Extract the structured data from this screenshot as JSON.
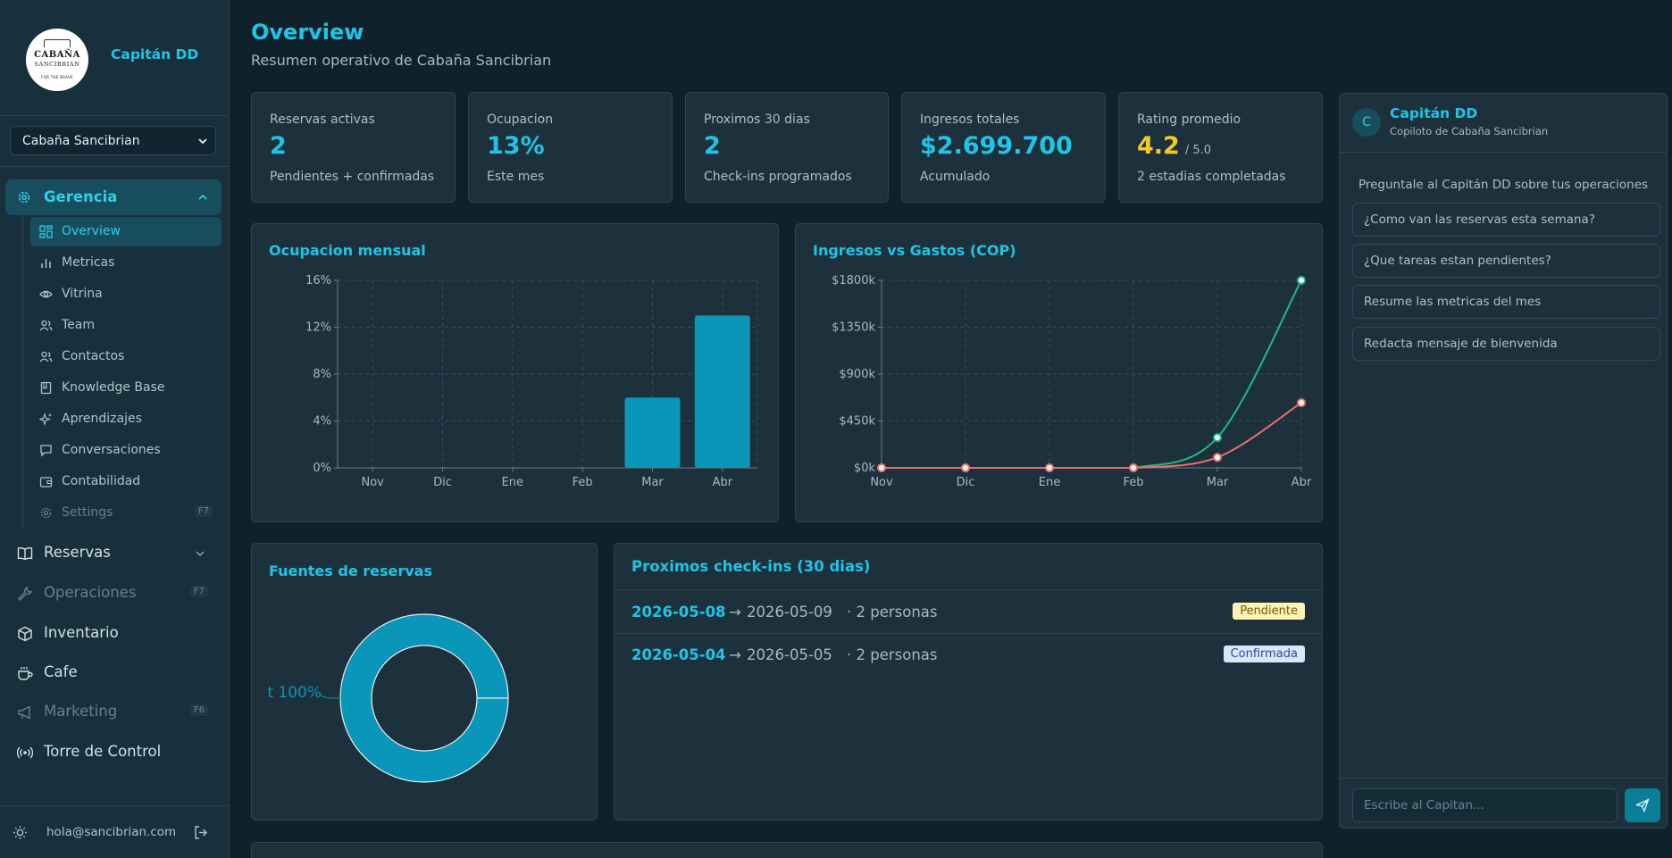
{
  "brand": {
    "logo_line1": "CABAÑA",
    "logo_line2": "SANCIBRIAN",
    "logo_line3": "FOR THE BRAVE",
    "name": "Capitán DD"
  },
  "property_select": {
    "value": "Cabaña Sancibrian"
  },
  "sidebar": {
    "group": {
      "label": "Gerencia",
      "icon": "gear-icon"
    },
    "sub_items": [
      {
        "label": "Overview",
        "icon": "dashboard-icon",
        "active": true
      },
      {
        "label": "Metricas",
        "icon": "bar-chart-icon"
      },
      {
        "label": "Vitrina",
        "icon": "eye-icon"
      },
      {
        "label": "Team",
        "icon": "users-icon"
      },
      {
        "label": "Contactos",
        "icon": "contacts-icon"
      },
      {
        "label": "Knowledge Base",
        "icon": "book-icon"
      },
      {
        "label": "Aprendizajes",
        "icon": "sparkles-icon"
      },
      {
        "label": "Conversaciones",
        "icon": "chat-icon"
      },
      {
        "label": "Contabilidad",
        "icon": "wallet-icon"
      },
      {
        "label": "Settings",
        "icon": "gear-icon",
        "key": "F7",
        "disabled": true
      }
    ],
    "items": [
      {
        "label": "Reservas",
        "icon": "book-open-icon"
      },
      {
        "label": "Operaciones",
        "icon": "wrench-icon",
        "key": "F7",
        "disabled": true
      },
      {
        "label": "Inventario",
        "icon": "package-icon"
      },
      {
        "label": "Cafe",
        "icon": "coffee-icon"
      },
      {
        "label": "Marketing",
        "icon": "megaphone-icon",
        "key": "F6",
        "disabled": true
      },
      {
        "label": "Torre de Control",
        "icon": "broadcast-icon"
      }
    ],
    "footer": {
      "email": "hola@sancibrian.com"
    }
  },
  "header": {
    "title": "Overview",
    "subtitle": "Resumen operativo de Cabaña Sancibrian"
  },
  "stats": [
    {
      "label": "Reservas activas",
      "value": "2",
      "note": "Pendientes + confirmadas"
    },
    {
      "label": "Ocupacion",
      "value": "13%",
      "note": "Este mes"
    },
    {
      "label": "Proximos 30 dias",
      "value": "2",
      "note": "Check-ins programados"
    },
    {
      "label": "Ingresos totales",
      "value": "$2.699.700",
      "note": "Acumulado"
    },
    {
      "label": "Rating promedio",
      "value": "4.2",
      "suffix": "/ 5.0",
      "note": "2 estadias completadas"
    }
  ],
  "colors": {
    "accent": "#1fc5e6",
    "bar": "#0a96b8",
    "ingresos": "#1fb986",
    "gastos": "#ef6f6c",
    "pending_bg": "#fdf3b3",
    "confirmed_bg": "#dbe6fb"
  },
  "chart_data": [
    {
      "type": "bar",
      "title": "Ocupacion mensual",
      "categories": [
        "Nov",
        "Dic",
        "Ene",
        "Feb",
        "Mar",
        "Abr"
      ],
      "values": [
        0,
        0,
        0,
        0,
        6,
        13
      ],
      "ylim": [
        0,
        16
      ],
      "yticks": [
        0,
        4,
        8,
        12,
        16
      ],
      "ytick_labels": [
        "0%",
        "4%",
        "8%",
        "12%",
        "16%"
      ],
      "grid": true
    },
    {
      "type": "line",
      "title": "Ingresos vs Gastos (COP)",
      "categories": [
        "Nov",
        "Dic",
        "Ene",
        "Feb",
        "Mar",
        "Abr"
      ],
      "series": [
        {
          "values": [
            0,
            0,
            0,
            0,
            290,
            1800
          ]
        },
        {
          "values": [
            0,
            0,
            0,
            0,
            100,
            625
          ]
        }
      ],
      "ylim": [
        0,
        1800
      ],
      "yticks": [
        0,
        450,
        900,
        1350,
        1800
      ],
      "ytick_labels": [
        "$0k",
        "$450k",
        "$900k",
        "$1350k",
        "$1800k"
      ],
      "grid": true
    },
    {
      "type": "pie",
      "title": "Fuentes de reservas",
      "slices": [
        {
          "label": "t 100%",
          "value": 100
        }
      ]
    }
  ],
  "checkins": {
    "title": "Proximos check-ins (30 dias)",
    "rows": [
      {
        "from": "2026-05-08",
        "arrow": "→",
        "to": "2026-05-09",
        "people": "· 2 personas",
        "status": "Pendiente"
      },
      {
        "from": "2026-05-04",
        "arrow": "→",
        "to": "2026-05-05",
        "people": "· 2 personas",
        "status": "Confirmada"
      }
    ]
  },
  "chat": {
    "avatar": "C",
    "title": "Capitán DD",
    "subtitle": "Copiloto de Cabaña Sancibrian",
    "prompt": "Preguntale al Capitán DD sobre tus operaciones",
    "suggestions": [
      "¿Como van las reservas esta semana?",
      "¿Que tareas estan pendientes?",
      "Resume las metricas del mes",
      "Redacta mensaje de bienvenida"
    ],
    "input_placeholder": "Escribe al Capitan..."
  }
}
